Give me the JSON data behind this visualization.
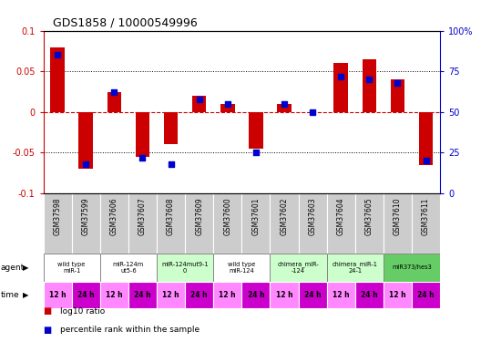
{
  "title": "GDS1858 / 10000549996",
  "samples": [
    "GSM37598",
    "GSM37599",
    "GSM37606",
    "GSM37607",
    "GSM37608",
    "GSM37609",
    "GSM37600",
    "GSM37601",
    "GSM37602",
    "GSM37603",
    "GSM37604",
    "GSM37605",
    "GSM37610",
    "GSM37611"
  ],
  "log10_ratio": [
    0.08,
    -0.07,
    0.025,
    -0.055,
    -0.04,
    0.02,
    0.01,
    -0.045,
    0.01,
    0.0,
    0.06,
    0.065,
    0.04,
    -0.065
  ],
  "percentile_rank": [
    85,
    18,
    62,
    22,
    18,
    58,
    55,
    25,
    55,
    50,
    72,
    70,
    68,
    20
  ],
  "ylim_left": [
    -0.1,
    0.1
  ],
  "ylim_right": [
    0,
    100
  ],
  "yticks_left": [
    -0.1,
    -0.05,
    0.0,
    0.05,
    0.1
  ],
  "yticks_right": [
    0,
    25,
    50,
    75,
    100
  ],
  "bar_color": "#cc0000",
  "dot_color": "#0000cc",
  "agent_groups": [
    {
      "label": "wild type\nmiR-1",
      "cols": [
        0,
        1
      ],
      "color": "#ffffff"
    },
    {
      "label": "miR-124m\nut5-6",
      "cols": [
        2,
        3
      ],
      "color": "#ffffff"
    },
    {
      "label": "miR-124mut9-1\n0",
      "cols": [
        4,
        5
      ],
      "color": "#ccffcc"
    },
    {
      "label": "wild type\nmiR-124",
      "cols": [
        6,
        7
      ],
      "color": "#ffffff"
    },
    {
      "label": "chimera_miR-\n-124",
      "cols": [
        8,
        9
      ],
      "color": "#ccffcc"
    },
    {
      "label": "chimera_miR-1\n24-1",
      "cols": [
        10,
        11
      ],
      "color": "#ccffcc"
    },
    {
      "label": "miR373/hes3",
      "cols": [
        12,
        13
      ],
      "color": "#66cc66"
    }
  ],
  "time_labels": [
    "12 h",
    "24 h",
    "12 h",
    "24 h",
    "12 h",
    "24 h",
    "12 h",
    "24 h",
    "12 h",
    "24 h",
    "12 h",
    "24 h",
    "12 h",
    "24 h"
  ],
  "time_color_alt": [
    "#ff88ff",
    "#cc00cc"
  ],
  "left_axis_color": "#cc0000",
  "right_axis_color": "#0000cc",
  "sample_bg_color": "#cccccc",
  "dotted_line_color": "#000000",
  "zero_line_color": "#cc0000",
  "grid_colors": [
    -0.05,
    0.05
  ],
  "figure_bg": "#ffffff"
}
